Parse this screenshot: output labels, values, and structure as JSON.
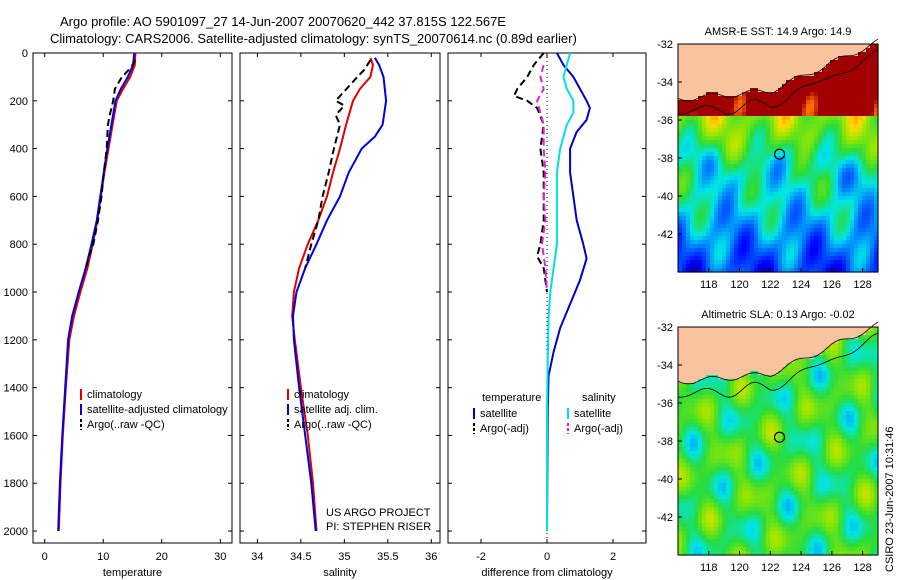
{
  "header": {
    "line1": "Argo profile: AO 5901097_27 14-Jun-2007 20070620_442 37.815S 122.567E",
    "line2": "Climatology: CARS2006. Satellite-adjusted climatology: synTS_20070614.nc (0.89d earlier)"
  },
  "credit": "CSIRO 23-Jun-2007 10:31:46",
  "chart_data": [
    {
      "type": "line",
      "xlabel": "temperature",
      "ylabel": "",
      "xlim": [
        -2,
        32
      ],
      "ylim": [
        2050,
        0
      ],
      "xticks": [
        "0",
        "10",
        "20",
        "30"
      ],
      "yticks": [
        "0",
        "200",
        "400",
        "600",
        "800",
        "1000",
        "1200",
        "1400",
        "1600",
        "1800",
        "2000"
      ],
      "legend": [
        "climatology",
        "satellite-adjusted climatology",
        "Argo(..raw -QC)"
      ],
      "legend_position": "lower-right",
      "series": [
        {
          "name": "climatology",
          "color": "#e00000",
          "points": [
            [
              15.5,
              0
            ],
            [
              15.4,
              50
            ],
            [
              14.6,
              100
            ],
            [
              13.4,
              150
            ],
            [
              12.3,
              200
            ],
            [
              11.6,
              300
            ],
            [
              10.9,
              400
            ],
            [
              10.2,
              500
            ],
            [
              9.6,
              600
            ],
            [
              9.0,
              700
            ],
            [
              8.2,
              800
            ],
            [
              7.3,
              900
            ],
            [
              6.1,
              1000
            ],
            [
              5.0,
              1100
            ],
            [
              4.2,
              1200
            ],
            [
              3.6,
              1400
            ],
            [
              3.1,
              1600
            ],
            [
              2.7,
              1800
            ],
            [
              2.4,
              2000
            ]
          ]
        },
        {
          "name": "satellite-adjusted climatology",
          "color": "#0000e0",
          "points": [
            [
              15.3,
              0
            ],
            [
              15.1,
              50
            ],
            [
              14.2,
              100
            ],
            [
              13.0,
              150
            ],
            [
              12.1,
              200
            ],
            [
              11.4,
              300
            ],
            [
              10.7,
              400
            ],
            [
              10.1,
              500
            ],
            [
              9.5,
              600
            ],
            [
              8.9,
              700
            ],
            [
              8.0,
              800
            ],
            [
              7.0,
              900
            ],
            [
              5.8,
              1000
            ],
            [
              4.7,
              1100
            ],
            [
              4.0,
              1200
            ],
            [
              3.5,
              1400
            ],
            [
              3.0,
              1600
            ],
            [
              2.6,
              1800
            ],
            [
              2.3,
              2000
            ]
          ]
        },
        {
          "name": "Argo(..raw -QC)",
          "color": "#000000",
          "dashed": true,
          "points": [
            [
              15.4,
              30
            ],
            [
              14.8,
              60
            ],
            [
              13.2,
              100
            ],
            [
              12.0,
              150
            ],
            [
              11.7,
              200
            ],
            [
              11.2,
              250
            ],
            [
              10.8,
              300
            ],
            [
              10.6,
              400
            ],
            [
              10.1,
              500
            ],
            [
              9.7,
              600
            ],
            [
              9.1,
              700
            ],
            [
              8.3,
              800
            ],
            [
              7.6,
              850
            ],
            [
              7.0,
              900
            ]
          ]
        }
      ]
    },
    {
      "type": "line",
      "xlabel": "salinity",
      "xlim": [
        33.8,
        36.1
      ],
      "ylim": [
        2050,
        0
      ],
      "xticks": [
        "34",
        "34.5",
        "35",
        "35.5",
        "36"
      ],
      "legend": [
        "climatology",
        "satellite adj. clim.",
        "Argo(..raw -QC)"
      ],
      "legend_position": "lower-right",
      "annotation": [
        "US ARGO PROJECT",
        "PI: STEPHEN RISER"
      ],
      "series": [
        {
          "name": "climatology",
          "color": "#e00000",
          "points": [
            [
              35.3,
              20
            ],
            [
              35.33,
              50
            ],
            [
              35.3,
              100
            ],
            [
              35.18,
              150
            ],
            [
              35.1,
              200
            ],
            [
              35.02,
              300
            ],
            [
              34.95,
              400
            ],
            [
              34.87,
              500
            ],
            [
              34.8,
              600
            ],
            [
              34.7,
              700
            ],
            [
              34.58,
              800
            ],
            [
              34.48,
              900
            ],
            [
              34.42,
              1000
            ],
            [
              34.4,
              1100
            ],
            [
              34.43,
              1200
            ],
            [
              34.5,
              1400
            ],
            [
              34.58,
              1600
            ],
            [
              34.64,
              1800
            ],
            [
              34.68,
              2000
            ]
          ]
        },
        {
          "name": "satellite adj. clim.",
          "color": "#0000e0",
          "points": [
            [
              35.35,
              20
            ],
            [
              35.4,
              50
            ],
            [
              35.45,
              100
            ],
            [
              35.48,
              200
            ],
            [
              35.44,
              300
            ],
            [
              35.35,
              350
            ],
            [
              35.2,
              400
            ],
            [
              35.05,
              500
            ],
            [
              34.95,
              600
            ],
            [
              34.8,
              700
            ],
            [
              34.68,
              800
            ],
            [
              34.55,
              900
            ],
            [
              34.45,
              1000
            ],
            [
              34.41,
              1100
            ],
            [
              34.42,
              1200
            ],
            [
              34.48,
              1400
            ],
            [
              34.55,
              1600
            ],
            [
              34.62,
              1800
            ],
            [
              34.67,
              2000
            ]
          ]
        },
        {
          "name": "Argo(..raw -QC)",
          "color": "#000000",
          "dashed": true,
          "points": [
            [
              35.3,
              30
            ],
            [
              35.23,
              70
            ],
            [
              35.15,
              100
            ],
            [
              35.05,
              140
            ],
            [
              34.95,
              180
            ],
            [
              34.9,
              200
            ],
            [
              35.0,
              220
            ],
            [
              34.9,
              260
            ],
            [
              34.95,
              300
            ],
            [
              34.88,
              400
            ],
            [
              34.82,
              500
            ],
            [
              34.75,
              600
            ],
            [
              34.7,
              700
            ],
            [
              34.62,
              800
            ],
            [
              34.55,
              900
            ]
          ]
        }
      ]
    },
    {
      "type": "line",
      "xlabel": "difference from climatology",
      "xlim": [
        -3,
        3
      ],
      "ylim": [
        2050,
        0
      ],
      "xticks": [
        "-2",
        "0",
        "2"
      ],
      "legend": [
        "temperature",
        "satellite",
        "Argo(-adj)",
        "salinity",
        "satellite",
        "Argo(-adj)"
      ],
      "legend_position": "lower-right",
      "series": [
        {
          "name": "satellite",
          "color": "#0000c8",
          "points": [
            [
              0.3,
              0
            ],
            [
              0.5,
              50
            ],
            [
              0.8,
              100
            ],
            [
              1.0,
              150
            ],
            [
              1.2,
              200
            ],
            [
              1.3,
              230
            ],
            [
              1.2,
              280
            ],
            [
              0.9,
              330
            ],
            [
              0.7,
              400
            ],
            [
              0.7,
              500
            ],
            [
              0.8,
              600
            ],
            [
              0.9,
              700
            ],
            [
              1.1,
              800
            ],
            [
              1.2,
              860
            ],
            [
              1.0,
              950
            ],
            [
              0.7,
              1050
            ],
            [
              0.4,
              1150
            ],
            [
              0.2,
              1250
            ],
            [
              0.05,
              1350
            ],
            [
              0.02,
              1500
            ],
            [
              0,
              2000
            ]
          ]
        },
        {
          "name": "satellite",
          "color": "#00e0e0",
          "points": [
            [
              0.7,
              0
            ],
            [
              0.6,
              50
            ],
            [
              0.5,
              100
            ],
            [
              0.6,
              150
            ],
            [
              0.8,
              200
            ],
            [
              0.8,
              250
            ],
            [
              0.6,
              300
            ],
            [
              0.4,
              400
            ],
            [
              0.3,
              500
            ],
            [
              0.3,
              600
            ],
            [
              0.3,
              700
            ],
            [
              0.3,
              800
            ],
            [
              0.2,
              900
            ],
            [
              0.1,
              1000
            ],
            [
              0.05,
              1100
            ],
            [
              0.02,
              1300
            ],
            [
              0,
              1500
            ],
            [
              0,
              2000
            ]
          ]
        },
        {
          "name": "Argo(-adj)",
          "color": "#000000",
          "dashed": true,
          "points": [
            [
              -0.1,
              0
            ],
            [
              -0.4,
              50
            ],
            [
              -0.6,
              100
            ],
            [
              -0.9,
              150
            ],
            [
              -1.0,
              180
            ],
            [
              -0.6,
              200
            ],
            [
              -0.3,
              230
            ],
            [
              -0.1,
              300
            ],
            [
              -0.2,
              400
            ],
            [
              -0.1,
              500
            ],
            [
              -0.1,
              600
            ],
            [
              -0.1,
              700
            ],
            [
              -0.2,
              800
            ],
            [
              -0.3,
              850
            ],
            [
              -0.1,
              900
            ],
            [
              0,
              1000
            ]
          ]
        },
        {
          "name": "Argo(-adj)",
          "color": "#e020e0",
          "dashed": true,
          "points": [
            [
              -0.1,
              50
            ],
            [
              -0.2,
              100
            ],
            [
              -0.1,
              150
            ],
            [
              -0.3,
              200
            ],
            [
              -0.2,
              250
            ],
            [
              -0.1,
              300
            ],
            [
              -0.1,
              400
            ],
            [
              -0.05,
              500
            ],
            [
              -0.1,
              600
            ],
            [
              -0.05,
              700
            ],
            [
              -0.15,
              800
            ],
            [
              -0.05,
              900
            ],
            [
              0,
              1000
            ]
          ]
        }
      ]
    },
    {
      "type": "heatmap",
      "title": "AMSR-E SST: 14.9 Argo: 14.9",
      "xlim": [
        116,
        129
      ],
      "ylim": [
        -44,
        -32
      ],
      "xticks": [
        "118",
        "120",
        "122",
        "124",
        "126",
        "128"
      ],
      "yticks": [
        "-32",
        "-34",
        "-36",
        "-38",
        "-40",
        "-42"
      ],
      "marker": [
        122.6,
        -37.8
      ]
    },
    {
      "type": "heatmap",
      "title": "Altimetric SLA: 0.13 Argo: -0.02",
      "xlim": [
        116,
        129
      ],
      "ylim": [
        -44,
        -32
      ],
      "xticks": [
        "118",
        "120",
        "122",
        "124",
        "126",
        "128"
      ],
      "yticks": [
        "-32",
        "-34",
        "-36",
        "-38",
        "-40",
        "-42"
      ],
      "marker": [
        122.6,
        -37.8
      ]
    }
  ]
}
